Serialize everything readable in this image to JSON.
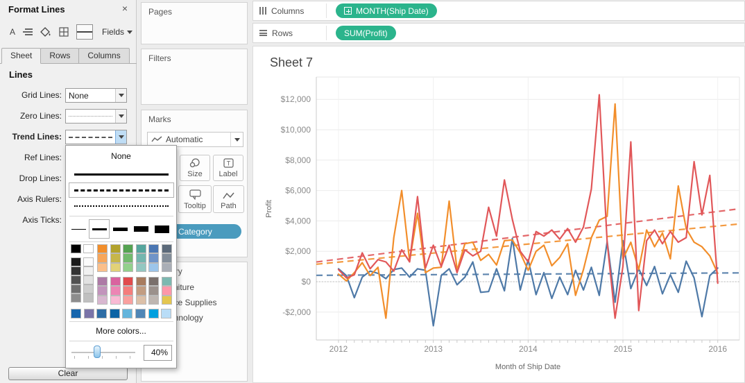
{
  "format_panel": {
    "title": "Format Lines",
    "close_label": "×",
    "toolbar": {
      "font_label": "A",
      "fields_label": "Fields"
    },
    "tabs": [
      {
        "label": "Sheet",
        "active": true
      },
      {
        "label": "Rows",
        "active": false
      },
      {
        "label": "Columns",
        "active": false
      }
    ],
    "section_title": "Lines",
    "rows": [
      {
        "label": "Grid Lines:",
        "value": "None",
        "preview": "text"
      },
      {
        "label": "Zero Lines:",
        "preview": "dotted"
      },
      {
        "label": "Trend Lines:",
        "preview": "dashed",
        "bold": true,
        "open": true
      },
      {
        "label": "Ref Lines:"
      },
      {
        "label": "Drop Lines:"
      },
      {
        "label": "Axis Rulers:"
      },
      {
        "label": "Axis Ticks:"
      }
    ],
    "clear_label": "Clear"
  },
  "line_style_popup": {
    "none_label": "None",
    "styles": [
      "solid",
      "dashed",
      "dotted"
    ],
    "selected_style": "dashed",
    "widths": [
      1,
      3,
      5,
      8,
      11
    ],
    "selected_width_index": 1,
    "palette": {
      "selected_color": "#000000",
      "gray_column": [
        "#1b1b1b",
        "#333333",
        "#515151",
        "#6f6f6f",
        "#8d8d8d"
      ],
      "white_column": [
        "#fbfbfb",
        "#f1f1f1",
        "#e2e2e2",
        "#cecece",
        "#c0c0c0"
      ],
      "top_columns": [
        [
          "#f28e2b",
          "#f7a65a",
          "#fbbf8a"
        ],
        [
          "#b2a22c",
          "#c6b64a",
          "#e2d277"
        ],
        [
          "#55a352",
          "#72ba6e",
          "#92d08c"
        ],
        [
          "#56a69e",
          "#74b6af",
          "#93c7c1"
        ],
        [
          "#4b77b3",
          "#6f94c8",
          "#9cc5ea"
        ],
        [
          "#5c6a7a",
          "#828d99",
          "#a9aeb6"
        ]
      ],
      "mid_columns": [
        [
          "#ad7aa6",
          "#c294bc",
          "#d8b7d0"
        ],
        [
          "#d9639f",
          "#ec85b4",
          "#f9bad4"
        ],
        [
          "#e14b4d",
          "#f47d7c",
          "#f9a09e"
        ],
        [
          "#a87c5f",
          "#c29d82",
          "#dcc0a8"
        ],
        [
          "#7a706c",
          "#9b918c",
          "#beb6b1"
        ],
        [
          "#7cb8b0",
          "#fd97a9",
          "#e4c64f"
        ]
      ],
      "bottom_row": [
        "#1766ad",
        "#7a74a8",
        "#2e6da5",
        "#0b63a5",
        "#64b5dc",
        "#4f86b6",
        "#00a0df",
        "#b9ddf7"
      ]
    },
    "more_colors_label": "More colors...",
    "opacity": {
      "value": "40%",
      "percent": 40
    }
  },
  "shelves": {
    "columns": {
      "label": "Columns",
      "pill": "MONTH(Ship Date)",
      "pill_color": "#2bb48c"
    },
    "rows": {
      "label": "Rows",
      "pill": "SUM(Profit)",
      "pill_color": "#2bb48c"
    }
  },
  "cards": {
    "pages": {
      "title": "Pages"
    },
    "filters": {
      "title": "Filters"
    },
    "marks": {
      "title": "Marks",
      "mark_type": "Automatic",
      "buttons": [
        {
          "label": "Size"
        },
        {
          "label": "Label"
        },
        {
          "label": "Tooltip"
        },
        {
          "label": "Path"
        }
      ],
      "color_pill": "Category"
    },
    "legend": {
      "title": "Category",
      "items": [
        {
          "label": "Furniture",
          "color": "#4e79a7"
        },
        {
          "label": "Office Supplies",
          "color": "#f28e2b"
        },
        {
          "label": "Technology",
          "color": "#e15759"
        }
      ]
    }
  },
  "chart_data": {
    "type": "line",
    "title": "Sheet 7",
    "xlabel": "Month of Ship Date",
    "ylabel": "Profit",
    "x_start": "2012-01",
    "x_end": "2016-01",
    "x_tick_labels": [
      "2012",
      "2013",
      "2014",
      "2015",
      "2016"
    ],
    "x_tick_month_index": [
      0,
      12,
      24,
      36,
      48
    ],
    "y_ticks": [
      {
        "value": 12000,
        "label": "$12,000"
      },
      {
        "value": 10000,
        "label": "$10,000"
      },
      {
        "value": 8000,
        "label": "$8,000"
      },
      {
        "value": 6000,
        "label": "$6,000"
      },
      {
        "value": 4000,
        "label": "$4,000"
      },
      {
        "value": 2000,
        "label": "$2,000"
      },
      {
        "value": 0,
        "label": "$0"
      },
      {
        "value": -2000,
        "label": "-$2,000"
      }
    ],
    "ylim": [
      -3600,
      13000
    ],
    "zero_line": true,
    "grid": "faint",
    "series": [
      {
        "name": "Furniture",
        "color": "#4e79a7",
        "values": [
          850,
          400,
          -1050,
          300,
          700,
          550,
          200,
          800,
          900,
          300,
          850,
          750,
          -2900,
          400,
          850,
          -200,
          300,
          1300,
          -700,
          -650,
          850,
          -600,
          2850,
          -550,
          1450,
          -850,
          600,
          -1100,
          300,
          -850,
          750,
          -550,
          950,
          -900,
          2650,
          -1350,
          2700,
          -450,
          850,
          -250,
          1000,
          -800,
          450,
          -700,
          1350,
          250,
          -2300,
          400,
          900
        ]
      },
      {
        "name": "Office Supplies",
        "color": "#f28e2b",
        "values": [
          500,
          50,
          600,
          1250,
          400,
          950,
          -2400,
          2900,
          6000,
          1350,
          4500,
          600,
          900,
          950,
          5300,
          750,
          2500,
          2600,
          1400,
          1800,
          1100,
          2700,
          2750,
          1900,
          750,
          2000,
          2400,
          1050,
          1600,
          2500,
          -900,
          800,
          2900,
          4050,
          4300,
          11700,
          1500,
          2600,
          800,
          3400,
          2300,
          3200,
          1500,
          6300,
          3500,
          2600,
          2300,
          1700,
          550
        ]
      },
      {
        "name": "Technology",
        "color": "#e15759",
        "values": [
          800,
          250,
          450,
          1900,
          850,
          1450,
          1300,
          700,
          2100,
          1300,
          5600,
          900,
          2400,
          1000,
          2400,
          600,
          2100,
          1700,
          2000,
          4900,
          3000,
          6700,
          4100,
          2000,
          1300,
          3300,
          3000,
          3400,
          2800,
          3500,
          2600,
          3600,
          6100,
          12300,
          2600,
          -2400,
          1000,
          9200,
          -1900,
          2700,
          3400,
          2500,
          3300,
          2600,
          2900,
          7900,
          4400,
          7000,
          -100
        ]
      }
    ],
    "trend_lines": [
      {
        "name": "Furniture trend",
        "color": "#4e79a7",
        "start": 420,
        "end": 580,
        "style": "dashed"
      },
      {
        "name": "Office Supplies trend",
        "color": "#f28e2b",
        "start": 1150,
        "end": 3800,
        "style": "dashed"
      },
      {
        "name": "Technology trend",
        "color": "#e15759",
        "start": 1300,
        "end": 4800,
        "style": "dashed"
      }
    ]
  }
}
